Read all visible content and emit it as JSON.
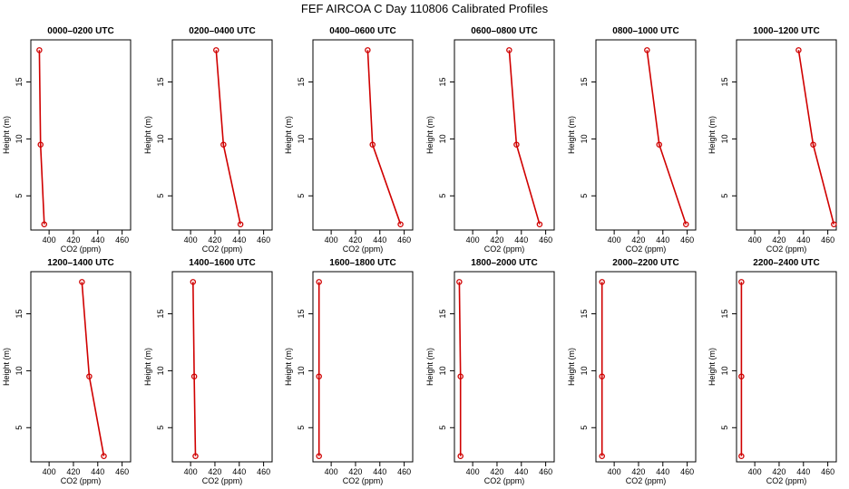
{
  "chart_data": {
    "type": "line",
    "title": "FEF AIRCOA C  Day 110806  Calibrated Profiles",
    "xlabel": "CO2 (ppm)",
    "ylabel": "Height (m)",
    "xlim": [
      385,
      467
    ],
    "ylim": [
      2,
      18.7
    ],
    "xticks": [
      400,
      420,
      440,
      460
    ],
    "yticks": [
      5,
      10,
      15
    ],
    "heights": [
      2.5,
      9.5,
      17.8
    ],
    "panels": [
      {
        "title": "0000–0200 UTC",
        "co2": [
          396,
          393,
          392
        ]
      },
      {
        "title": "0200–0400 UTC",
        "co2": [
          441,
          427,
          421
        ]
      },
      {
        "title": "0400–0600 UTC",
        "co2": [
          457,
          434,
          430
        ]
      },
      {
        "title": "0600–0800 UTC",
        "co2": [
          455,
          436,
          430
        ]
      },
      {
        "title": "0800–1000 UTC",
        "co2": [
          459,
          437,
          427
        ]
      },
      {
        "title": "1000–1200 UTC",
        "co2": [
          465,
          448,
          436
        ]
      },
      {
        "title": "1200–1400 UTC",
        "co2": [
          445,
          433,
          427
        ]
      },
      {
        "title": "1400–1600 UTC",
        "co2": [
          404,
          403,
          402
        ]
      },
      {
        "title": "1600–1800 UTC",
        "co2": [
          390,
          390,
          390
        ]
      },
      {
        "title": "1800–2000 UTC",
        "co2": [
          390,
          390,
          389
        ]
      },
      {
        "title": "2000–2200 UTC",
        "co2": [
          390,
          390,
          390
        ]
      },
      {
        "title": "2200–2400 UTC",
        "co2": [
          389,
          389,
          389
        ]
      }
    ]
  }
}
